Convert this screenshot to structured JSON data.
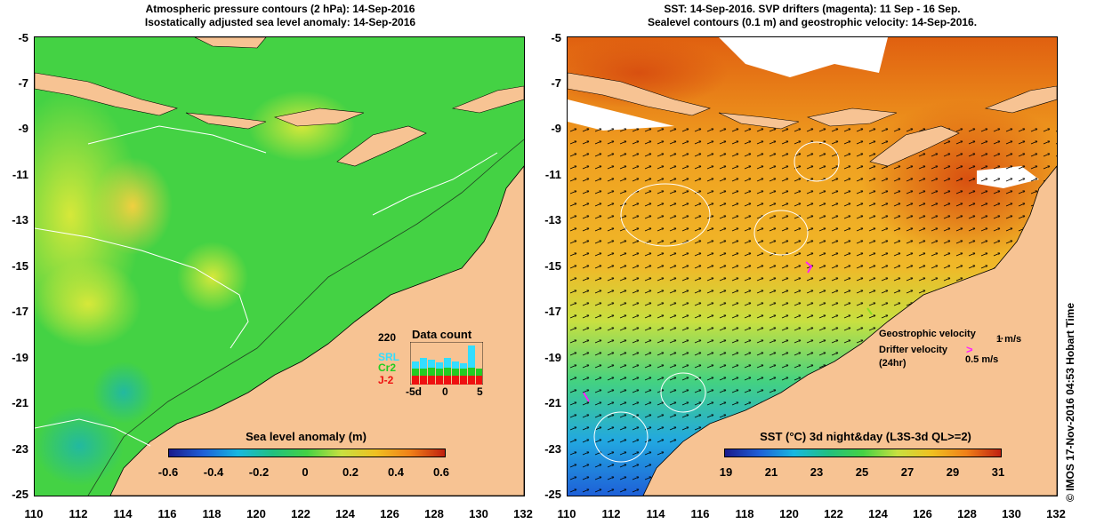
{
  "left_panel": {
    "title_line1": "Atmospheric pressure contours (2 hPa): 14-Sep-2016",
    "title_line2": "Isostatically adjusted sea level anomaly: 14-Sep-2016",
    "colorbar_title": "Sea level anomaly (m)",
    "colorbar_ticks": [
      "-0.6",
      "-0.4",
      "-0.2",
      "0",
      "0.2",
      "0.4",
      "0.6"
    ],
    "inset": {
      "ymax_label": "220",
      "title": "Data count",
      "series": [
        {
          "name": "SRL",
          "color": "#33ddff"
        },
        {
          "name": "Cr2",
          "color": "#22cc22"
        },
        {
          "name": "J-2",
          "color": "#ee1111"
        }
      ],
      "x_ticks": [
        "-5d",
        "0",
        "5"
      ]
    }
  },
  "right_panel": {
    "title_line1": "SST: 14-Sep-2016. SVP drifters (magenta): 11 Sep - 16 Sep.",
    "title_line2": "Sealevel contours (0.1 m) and geostrophic velocity: 14-Sep-2016.",
    "colorbar_title": "SST (°C) 3d night&day (L3S-3d QL>=2)",
    "colorbar_ticks": [
      "19",
      "21",
      "23",
      "25",
      "27",
      "29",
      "31"
    ],
    "legend": {
      "geo_label": "Geostrophic velocity",
      "geo_scale": "1 m/s",
      "drifter_label": "Drifter velocity",
      "drifter_sub": "(24hr)",
      "drifter_scale": "0.5 m/s"
    },
    "vertical_text": "© IMOS 17-Nov-2016 04:53 Hobart Time"
  },
  "axes": {
    "y_ticks": [
      "-5",
      "-7",
      "-9",
      "-11",
      "-13",
      "-15",
      "-17",
      "-19",
      "-21",
      "-23",
      "-25"
    ],
    "x_ticks": [
      "110",
      "112",
      "114",
      "116",
      "118",
      "120",
      "122",
      "124",
      "126",
      "128",
      "130",
      "132"
    ]
  },
  "colors": {
    "land": "#f7c393",
    "sla_ocean": "#44d244",
    "sst_ocean": "#f0a020"
  }
}
